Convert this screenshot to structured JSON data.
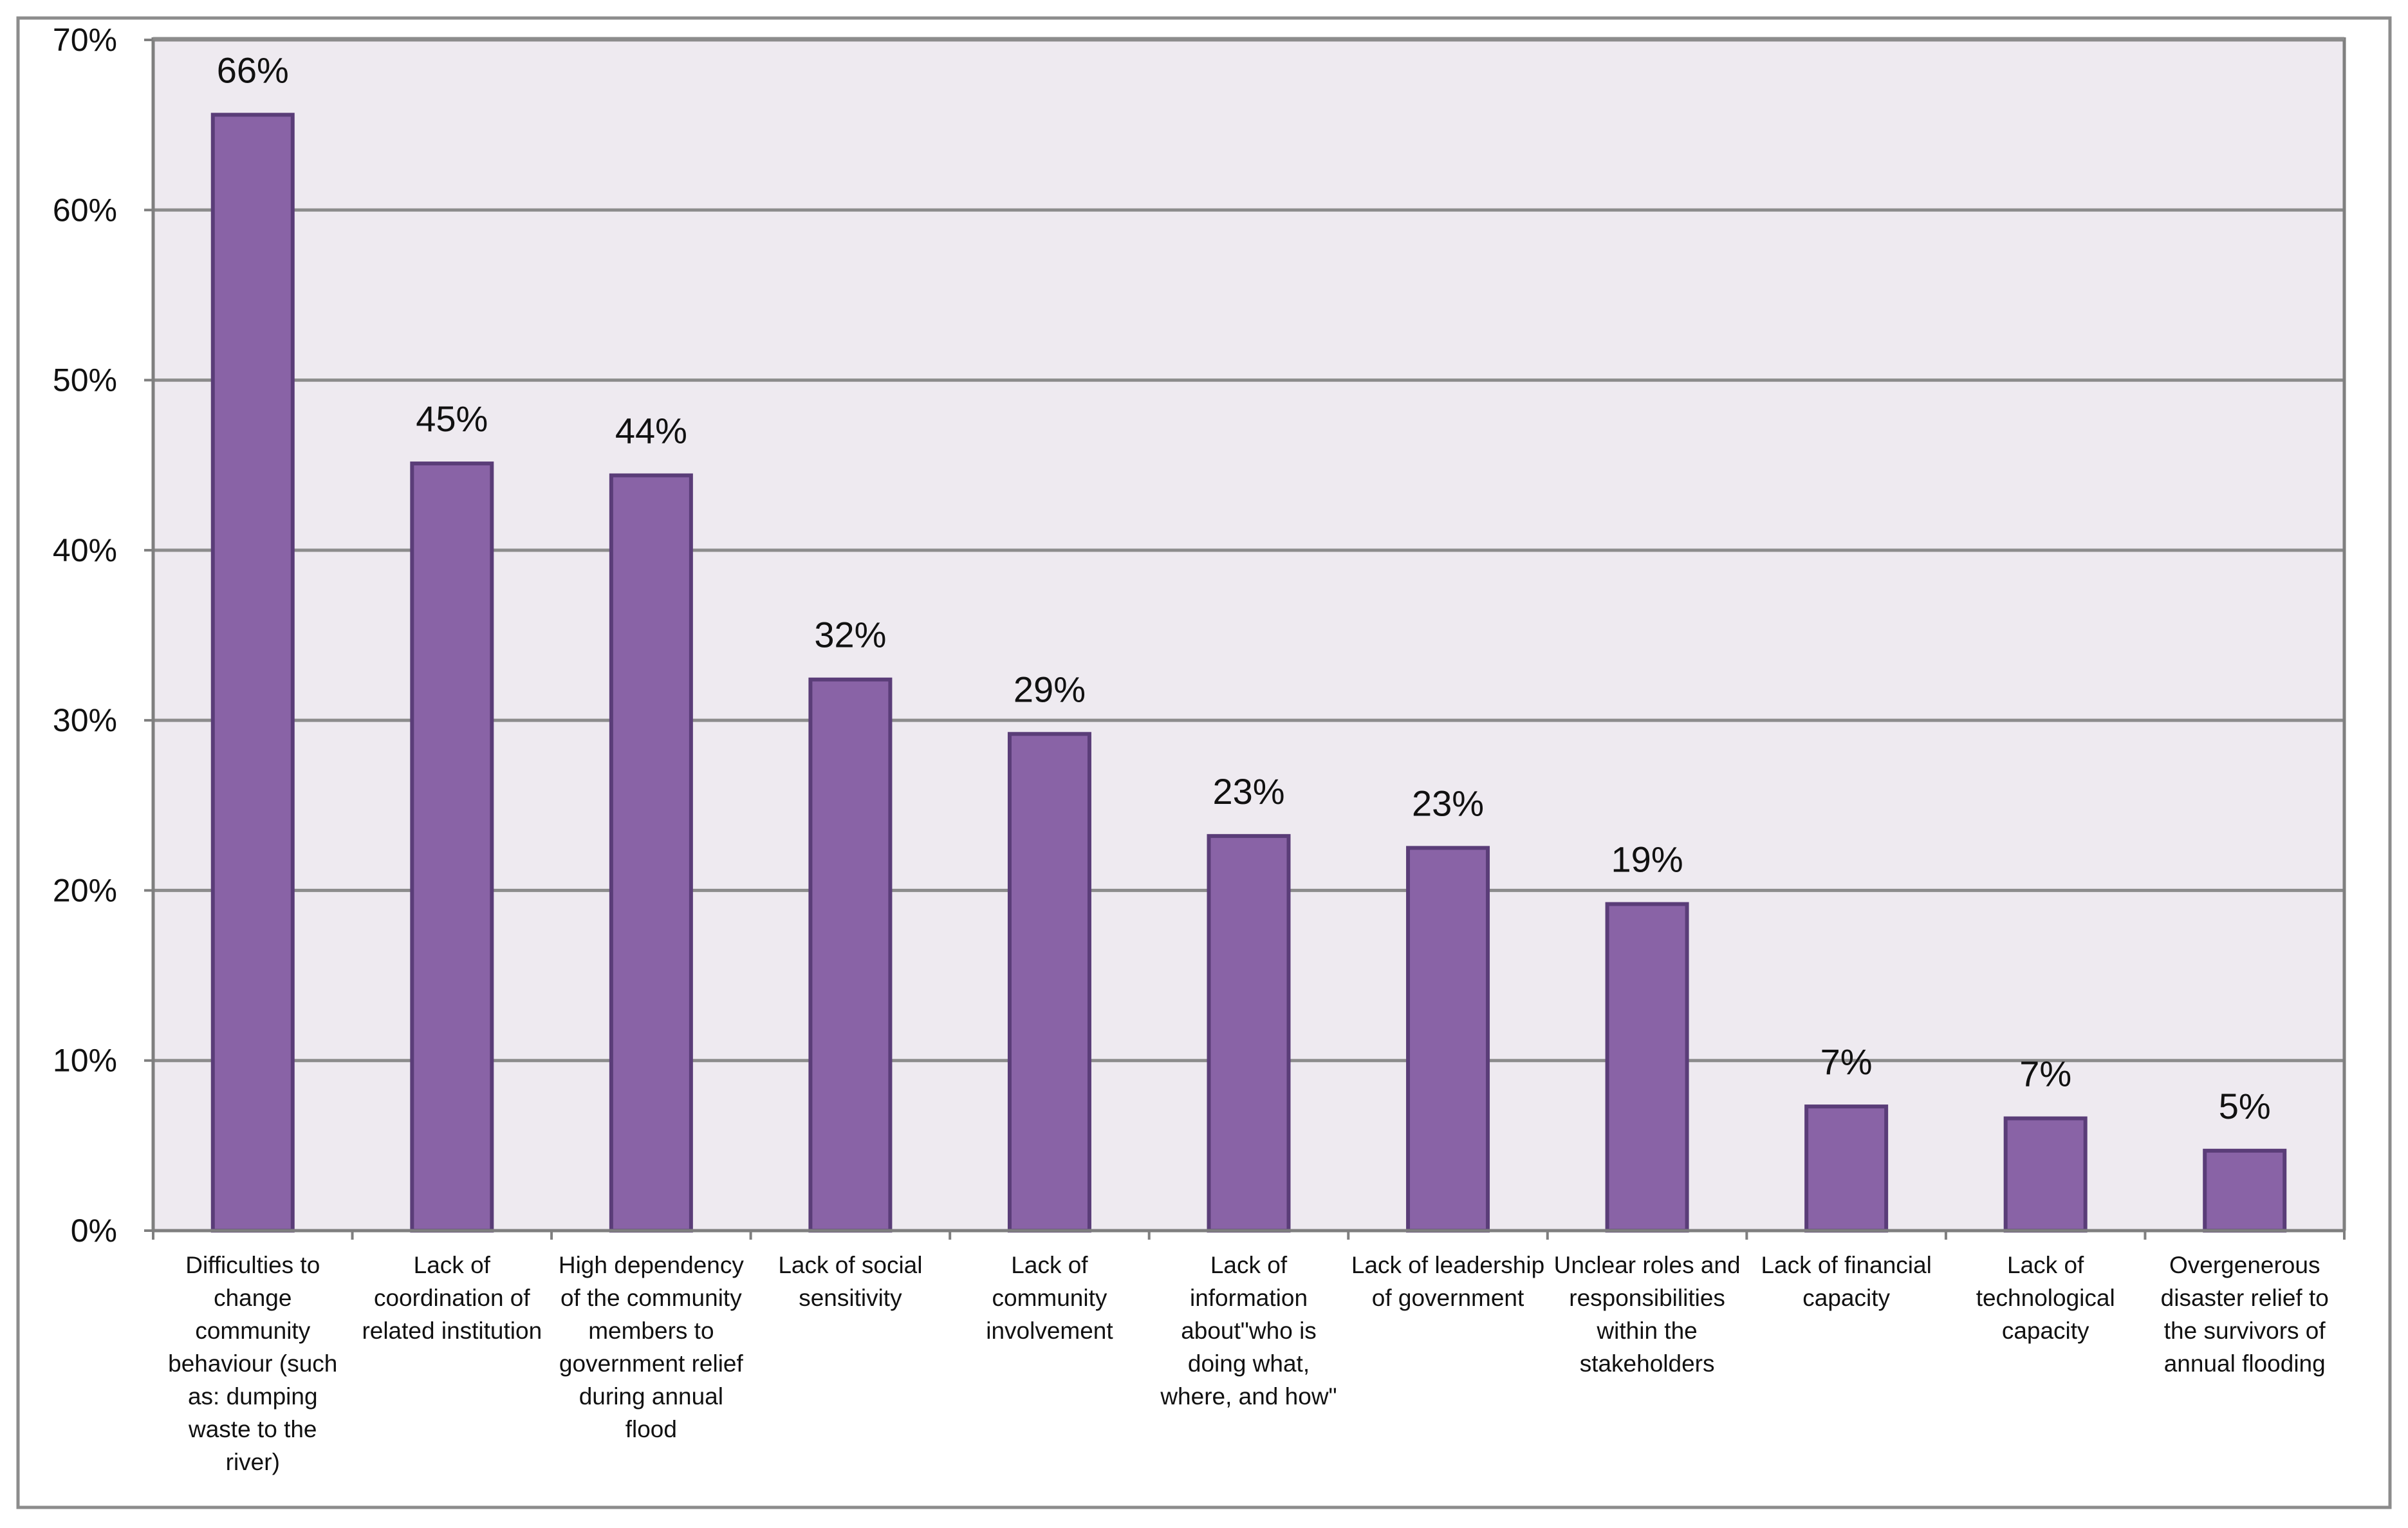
{
  "chart_data": {
    "type": "bar",
    "title": "",
    "xlabel": "",
    "ylabel": "",
    "ylim": [
      0,
      70
    ],
    "y_tick_values": [
      0,
      10,
      20,
      30,
      40,
      50,
      60,
      70
    ],
    "y_tick_labels": [
      "0%",
      "10%",
      "20%",
      "30%",
      "40%",
      "50%",
      "60%",
      "70%"
    ],
    "grid": true,
    "legend": "none",
    "categories": [
      "Difficulties to change community behaviour (such as: dumping waste to the river)",
      "Lack of coordination of related institution",
      "High dependency of the community members to government relief during annual flood",
      "Lack of social sensitivity",
      "Lack of community involvement",
      "Lack of information about\"who is doing what, where, and how\"",
      "Lack of leadership of government",
      "Unclear roles and responsibilities within the stakeholders",
      "Lack of financial capacity",
      "Lack of technological capacity",
      "Overgenerous disaster relief to the survivors of annual flooding"
    ],
    "category_label_lines": [
      [
        "Difficulties to",
        "change",
        "community",
        "behaviour (such",
        "as: dumping",
        "waste to the",
        "river)"
      ],
      [
        "Lack of",
        "coordination of",
        "related institution"
      ],
      [
        "High dependency",
        "of the community",
        "members to",
        "government relief",
        "during annual",
        "flood"
      ],
      [
        "Lack of social",
        "sensitivity"
      ],
      [
        "Lack of",
        "community",
        "involvement"
      ],
      [
        "Lack of",
        "information",
        "about\"who is",
        "doing what,",
        "where, and how\""
      ],
      [
        "Lack of leadership",
        "of government"
      ],
      [
        "Unclear roles and",
        "responsibilities",
        "within the",
        "stakeholders"
      ],
      [
        "Lack of financial",
        "capacity"
      ],
      [
        "Lack of",
        "technological",
        "capacity"
      ],
      [
        "Overgenerous",
        "disaster relief to",
        "the survivors of",
        "annual flooding"
      ]
    ],
    "values": [
      65.6,
      45.1,
      44.4,
      32.4,
      29.2,
      23.2,
      22.5,
      19.2,
      7.3,
      6.6,
      4.7
    ],
    "data_labels": [
      "66%",
      "45%",
      "44%",
      "32%",
      "29%",
      "23%",
      "23%",
      "19%",
      "7%",
      "7%",
      "5%"
    ],
    "colors": {
      "bar_fill": "#8963a6",
      "bar_stroke": "#5a3d78",
      "plot_background": "#eeeaf0",
      "gridline": "#8c8c8c",
      "axis": "#7f7f7f",
      "frame": "#8c8c8c"
    }
  }
}
